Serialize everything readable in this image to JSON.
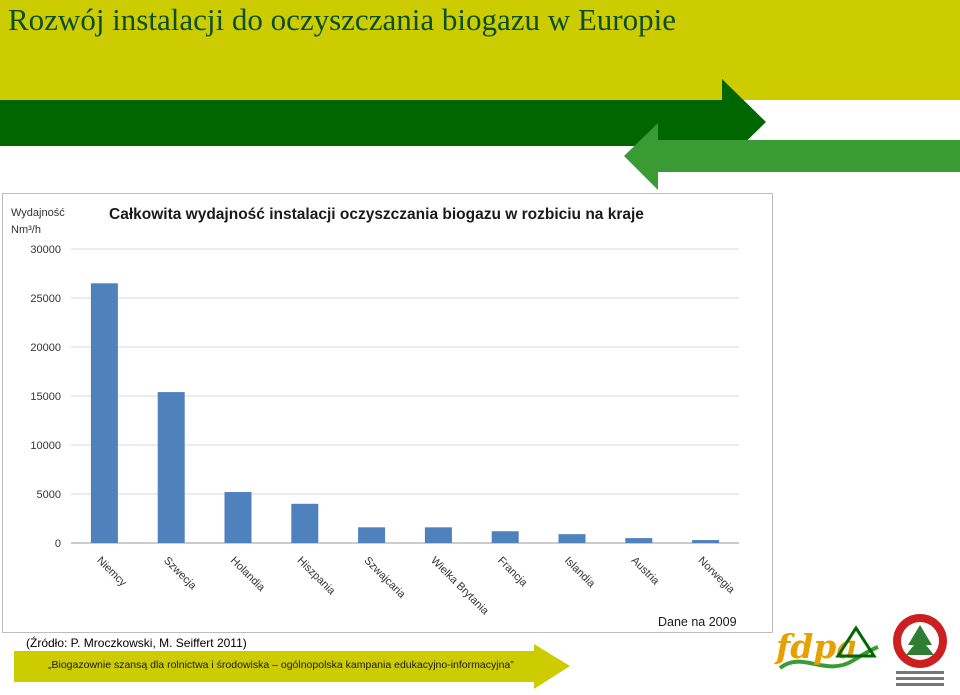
{
  "slide": {
    "title": "Rozwój instalacji do oczyszczania biogazu w Europie",
    "source": "(Źródło: P. Mroczkowski, M. Seiffert  2011)",
    "footer": "„Biogazownie szansą dla rolnictwa i środowiska – ogólnopolska kampania edukacyjno-informacyjna”",
    "logo_text": "fdpa",
    "colors": {
      "header": "#cccc00",
      "title": "#0b4f2a",
      "dark_green": "#006600",
      "light_green": "#3a9a33",
      "bar": "#4f81bd",
      "footer_arrow": "#cccc00"
    }
  },
  "chart_data": {
    "type": "bar",
    "title": "Całkowita wydajność instalacji oczyszczania biogazu  w rozbiciu na kraje",
    "ylabel": "Wydajność",
    "yunit": "Nm³/h",
    "note": "Dane na 2009",
    "categories": [
      "Niemcy",
      "Szwecja",
      "Holandia",
      "Hiszpania",
      "Szwajcaria",
      "Wielka Brytania",
      "Francja",
      "Islandia",
      "Austria",
      "Norwegia"
    ],
    "values": [
      26500,
      15400,
      5200,
      4000,
      1600,
      1600,
      1200,
      900,
      500,
      300
    ],
    "ylim": [
      0,
      30000
    ],
    "yticks": [
      0,
      5000,
      10000,
      15000,
      20000,
      25000,
      30000
    ],
    "grid": true
  }
}
